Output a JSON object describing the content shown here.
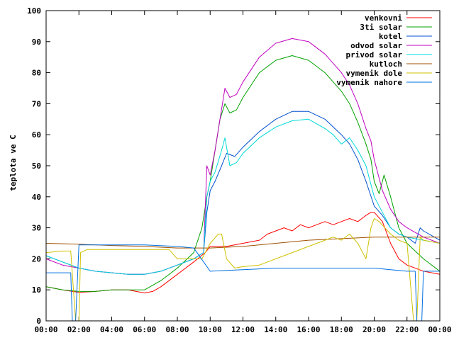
{
  "chart_data": {
    "type": "line",
    "ylabel": "teplota ve C",
    "ylim": [
      0,
      100
    ],
    "xlim": [
      0,
      24
    ],
    "yticks": [
      "0",
      "10",
      "20",
      "30",
      "40",
      "50",
      "60",
      "70",
      "80",
      "90",
      "100"
    ],
    "xticks": [
      "00:00",
      "02:00",
      "04:00",
      "06:00",
      "08:00",
      "10:00",
      "12:00",
      "14:00",
      "16:00",
      "18:00",
      "20:00",
      "22:00",
      "00:00"
    ],
    "legend_position": "top-right",
    "series": [
      {
        "name": "venkovni",
        "color": "#ff0000",
        "points": [
          [
            0,
            11
          ],
          [
            1,
            10
          ],
          [
            2,
            9.2
          ],
          [
            3,
            9.5
          ],
          [
            4,
            10
          ],
          [
            5,
            10
          ],
          [
            6,
            9
          ],
          [
            6.5,
            9.5
          ],
          [
            7,
            11
          ],
          [
            8,
            15
          ],
          [
            9,
            19
          ],
          [
            9.7,
            22
          ],
          [
            10,
            24
          ],
          [
            11,
            24
          ],
          [
            12,
            25
          ],
          [
            13,
            26
          ],
          [
            13.5,
            28
          ],
          [
            14,
            29
          ],
          [
            14.5,
            30
          ],
          [
            15,
            29
          ],
          [
            15.5,
            31
          ],
          [
            16,
            30
          ],
          [
            16.5,
            31
          ],
          [
            17,
            32
          ],
          [
            17.5,
            31
          ],
          [
            18,
            32
          ],
          [
            18.5,
            33
          ],
          [
            19,
            32
          ],
          [
            19.5,
            34
          ],
          [
            19.8,
            35
          ],
          [
            20,
            35
          ],
          [
            20.5,
            32
          ],
          [
            21,
            25
          ],
          [
            21.5,
            20
          ],
          [
            22,
            18
          ],
          [
            23,
            16
          ],
          [
            24,
            15
          ]
        ]
      },
      {
        "name": "3ti solar",
        "color": "#00a000",
        "points": [
          [
            0,
            11
          ],
          [
            1,
            10
          ],
          [
            2,
            9.5
          ],
          [
            3,
            9.5
          ],
          [
            4,
            10
          ],
          [
            5,
            10
          ],
          [
            6,
            10
          ],
          [
            7,
            13
          ],
          [
            8,
            17
          ],
          [
            9,
            22
          ],
          [
            9.5,
            30
          ],
          [
            9.8,
            40
          ],
          [
            10,
            45
          ],
          [
            10.3,
            55
          ],
          [
            10.6,
            65
          ],
          [
            10.9,
            70
          ],
          [
            11.2,
            67
          ],
          [
            11.6,
            68
          ],
          [
            12,
            72
          ],
          [
            13,
            80
          ],
          [
            14,
            84
          ],
          [
            15,
            85.5
          ],
          [
            16,
            84
          ],
          [
            17,
            80
          ],
          [
            18,
            74
          ],
          [
            18.5,
            70
          ],
          [
            19,
            64
          ],
          [
            19.5,
            57
          ],
          [
            19.8,
            52
          ],
          [
            20,
            45
          ],
          [
            20.3,
            41
          ],
          [
            20.6,
            47
          ],
          [
            21,
            40
          ],
          [
            21.5,
            30
          ],
          [
            22,
            25
          ],
          [
            23,
            20
          ],
          [
            24,
            16
          ]
        ]
      },
      {
        "name": "kotel",
        "color": "#0050d0",
        "points": [
          [
            0,
            21
          ],
          [
            1,
            19
          ],
          [
            2,
            17
          ],
          [
            3,
            16
          ],
          [
            4,
            15.5
          ],
          [
            5,
            15
          ],
          [
            6,
            15
          ],
          [
            7,
            16
          ],
          [
            8,
            18
          ],
          [
            9,
            20
          ],
          [
            9.6,
            22
          ],
          [
            9.8,
            35
          ],
          [
            10,
            42
          ],
          [
            10.3,
            45
          ],
          [
            10.7,
            50
          ],
          [
            11,
            54
          ],
          [
            11.5,
            53
          ],
          [
            12,
            56
          ],
          [
            13,
            61
          ],
          [
            14,
            65
          ],
          [
            15,
            67.5
          ],
          [
            16,
            67.5
          ],
          [
            17,
            65
          ],
          [
            18,
            60
          ],
          [
            18.5,
            57
          ],
          [
            19,
            52
          ],
          [
            19.5,
            45
          ],
          [
            20,
            37
          ],
          [
            20.5,
            34
          ],
          [
            21,
            30
          ],
          [
            21.5,
            28
          ],
          [
            22,
            27
          ],
          [
            22.5,
            25
          ],
          [
            22.8,
            30
          ],
          [
            23,
            29
          ],
          [
            24,
            26
          ]
        ]
      },
      {
        "name": "odvod solar",
        "color": "#c000c0",
        "points": [
          [
            0,
            20
          ],
          [
            1,
            18
          ],
          [
            2,
            17
          ],
          [
            3,
            16
          ],
          [
            4,
            15.5
          ],
          [
            5,
            15
          ],
          [
            6,
            15
          ],
          [
            7,
            16
          ],
          [
            8,
            18
          ],
          [
            9,
            20
          ],
          [
            9.6,
            22
          ],
          [
            9.8,
            50
          ],
          [
            10,
            47
          ],
          [
            10.3,
            55
          ],
          [
            10.6,
            65
          ],
          [
            10.9,
            75
          ],
          [
            11.2,
            72
          ],
          [
            11.6,
            73
          ],
          [
            12,
            77
          ],
          [
            13,
            85
          ],
          [
            14,
            89.5
          ],
          [
            15,
            91
          ],
          [
            16,
            90
          ],
          [
            17,
            86
          ],
          [
            18,
            80
          ],
          [
            18.5,
            76
          ],
          [
            19,
            70
          ],
          [
            19.5,
            62
          ],
          [
            19.8,
            58
          ],
          [
            20,
            52
          ],
          [
            20.5,
            42
          ],
          [
            21,
            36
          ],
          [
            21.5,
            32
          ],
          [
            22,
            30
          ],
          [
            23,
            27
          ],
          [
            24,
            25
          ]
        ]
      },
      {
        "name": "privod solar",
        "color": "#00d8d8",
        "points": [
          [
            0,
            21
          ],
          [
            1,
            19
          ],
          [
            2,
            17
          ],
          [
            3,
            16
          ],
          [
            4,
            15.5
          ],
          [
            5,
            15
          ],
          [
            6,
            15
          ],
          [
            7,
            16
          ],
          [
            8,
            18
          ],
          [
            9,
            20
          ],
          [
            9.6,
            22
          ],
          [
            9.8,
            40
          ],
          [
            10,
            45
          ],
          [
            10.3,
            48
          ],
          [
            10.7,
            55
          ],
          [
            10.9,
            59
          ],
          [
            11.2,
            50
          ],
          [
            11.6,
            51
          ],
          [
            12,
            54
          ],
          [
            13,
            59
          ],
          [
            14,
            62.5
          ],
          [
            15,
            64.5
          ],
          [
            16,
            65
          ],
          [
            17,
            62
          ],
          [
            17.5,
            60
          ],
          [
            18,
            57
          ],
          [
            18.5,
            59
          ],
          [
            19,
            55
          ],
          [
            19.5,
            50
          ],
          [
            20,
            40
          ],
          [
            20.5,
            35
          ],
          [
            21,
            30
          ],
          [
            21.5,
            28
          ],
          [
            22,
            27
          ],
          [
            23,
            26
          ],
          [
            24,
            25
          ]
        ]
      },
      {
        "name": "kutloch",
        "color": "#a05000",
        "points": [
          [
            0,
            25
          ],
          [
            2,
            24.7
          ],
          [
            4,
            24.3
          ],
          [
            6,
            24
          ],
          [
            8,
            23.5
          ],
          [
            10,
            23.5
          ],
          [
            12,
            24
          ],
          [
            14,
            25
          ],
          [
            16,
            26
          ],
          [
            18,
            26.5
          ],
          [
            20,
            27
          ],
          [
            22,
            27
          ],
          [
            24,
            27
          ]
        ]
      },
      {
        "name": "vymenik dole",
        "color": "#d0c000",
        "points": [
          [
            0,
            22
          ],
          [
            1,
            22.5
          ],
          [
            1.5,
            22.5
          ],
          [
            1.8,
            0
          ],
          [
            2,
            0
          ],
          [
            2.1,
            22
          ],
          [
            2.5,
            23
          ],
          [
            4,
            23
          ],
          [
            6,
            23
          ],
          [
            7.5,
            23
          ],
          [
            8,
            20
          ],
          [
            9,
            20
          ],
          [
            9.5,
            20
          ],
          [
            10,
            25
          ],
          [
            10.5,
            28
          ],
          [
            10.7,
            28
          ],
          [
            11,
            20
          ],
          [
            11.5,
            17
          ],
          [
            12,
            17.5
          ],
          [
            13,
            18
          ],
          [
            14,
            20
          ],
          [
            15,
            22
          ],
          [
            16,
            24
          ],
          [
            17,
            26
          ],
          [
            17.5,
            27
          ],
          [
            18,
            26
          ],
          [
            18.5,
            28
          ],
          [
            19,
            25
          ],
          [
            19.5,
            20
          ],
          [
            19.8,
            30
          ],
          [
            20,
            33
          ],
          [
            20.3,
            32
          ],
          [
            21,
            28
          ],
          [
            21.5,
            26
          ],
          [
            22,
            25
          ],
          [
            22.4,
            0
          ],
          [
            22.6,
            0
          ],
          [
            22.8,
            27
          ],
          [
            23,
            26
          ],
          [
            24,
            25
          ]
        ]
      },
      {
        "name": "vymenik nahore",
        "color": "#0070e0",
        "points": [
          [
            0,
            15.5
          ],
          [
            1,
            15.5
          ],
          [
            1.5,
            15.5
          ],
          [
            1.6,
            0
          ],
          [
            1.8,
            0
          ],
          [
            2,
            24.5
          ],
          [
            4,
            24.5
          ],
          [
            6,
            24.5
          ],
          [
            8,
            24
          ],
          [
            9,
            23.5
          ],
          [
            10,
            16
          ],
          [
            12,
            16.5
          ],
          [
            14,
            17
          ],
          [
            16,
            17
          ],
          [
            18,
            17
          ],
          [
            20,
            17
          ],
          [
            21,
            16.5
          ],
          [
            22,
            16
          ],
          [
            22.5,
            16
          ],
          [
            22.6,
            0
          ],
          [
            22.9,
            0
          ],
          [
            23,
            16
          ],
          [
            24,
            16
          ]
        ]
      }
    ]
  }
}
